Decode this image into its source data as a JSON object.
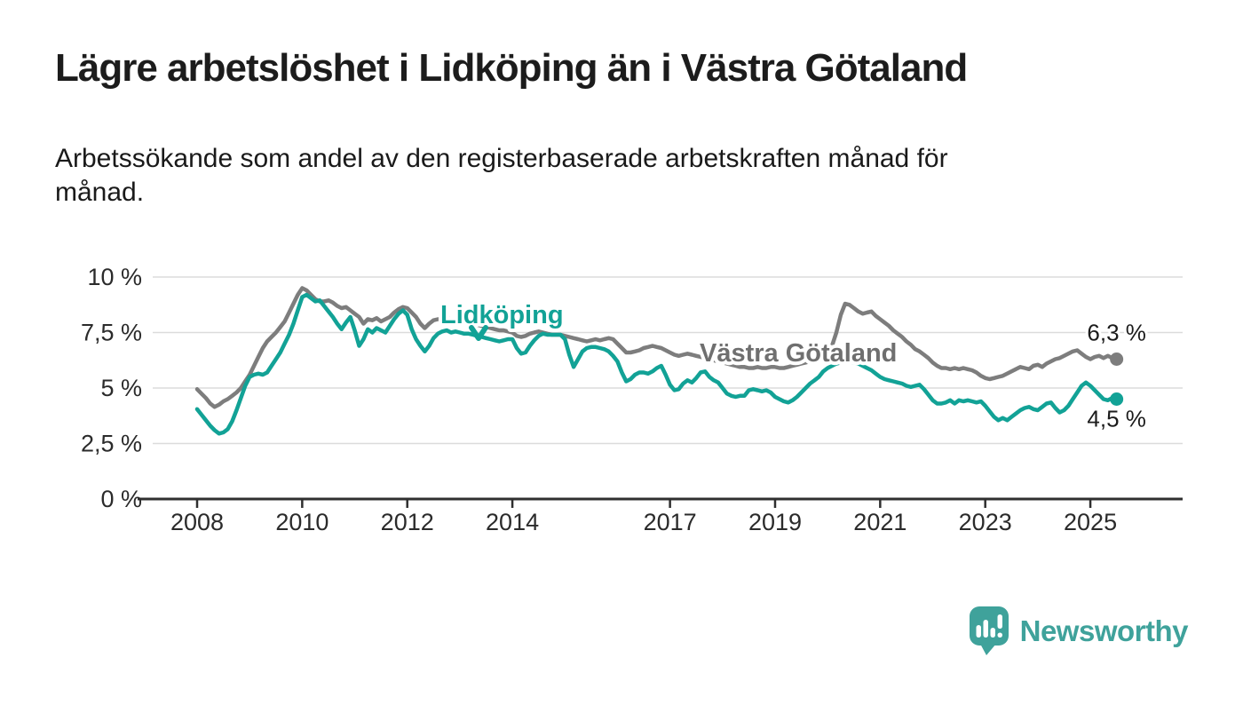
{
  "title": "Lägre arbetslöshet i Lidköping än i Västra Götaland",
  "subtitle": "Arbetssökande som andel av den registerbaserade arbetskraften månad för månad.",
  "branding": {
    "name": "Newsworthy",
    "color": "#3fa29b",
    "icon": "bar-chart-speech-bubble-icon"
  },
  "chart_data": {
    "type": "line",
    "title": "Lägre arbetslöshet i Lidköping än i Västra Götaland",
    "subtitle": "Arbetssökande som andel av den registerbaserade arbetskraften månad för månad.",
    "unit": "%",
    "frequency": "monthly",
    "x_start": "2008-01",
    "x_end": "2025-07",
    "ylim": [
      0,
      10
    ],
    "grid": true,
    "y_ticks": [
      "0 %",
      "2,5 %",
      "5 %",
      "7,5 %",
      "10 %"
    ],
    "x_ticks": [
      "2008",
      "2010",
      "2012",
      "2014",
      "2017",
      "2019",
      "2021",
      "2023",
      "2025"
    ],
    "x_tick_years": [
      2008,
      2010,
      2012,
      2014,
      2017,
      2019,
      2021,
      2023,
      2025
    ],
    "series": [
      {
        "name": "Västra Götaland",
        "color": "#7d7d7d",
        "label_color": "#6f6f6f",
        "end_label": "6,3 %",
        "end_value": 6.3,
        "values": [
          4.95,
          4.75,
          4.55,
          4.3,
          4.15,
          4.25,
          4.4,
          4.5,
          4.65,
          4.8,
          5.0,
          5.3,
          5.6,
          6.0,
          6.4,
          6.8,
          7.1,
          7.3,
          7.5,
          7.75,
          8.0,
          8.4,
          8.8,
          9.2,
          9.5,
          9.4,
          9.2,
          9.0,
          8.9,
          8.9,
          8.95,
          8.85,
          8.7,
          8.6,
          8.65,
          8.5,
          8.35,
          8.2,
          7.9,
          8.1,
          8.05,
          8.15,
          8.0,
          8.1,
          8.2,
          8.4,
          8.55,
          8.65,
          8.6,
          8.4,
          8.2,
          7.9,
          7.7,
          7.9,
          8.05,
          8.1,
          8.1,
          8.15,
          8.1,
          8.1,
          8.05,
          8.0,
          7.95,
          7.9,
          7.85,
          7.8,
          7.75,
          7.7,
          7.65,
          7.6,
          7.6,
          7.55,
          7.5,
          7.35,
          7.3,
          7.35,
          7.45,
          7.5,
          7.55,
          7.5,
          7.45,
          7.4,
          7.4,
          7.4,
          7.35,
          7.3,
          7.25,
          7.2,
          7.15,
          7.1,
          7.15,
          7.2,
          7.15,
          7.2,
          7.25,
          7.2,
          7.0,
          6.8,
          6.6,
          6.6,
          6.65,
          6.7,
          6.8,
          6.85,
          6.9,
          6.85,
          6.8,
          6.7,
          6.6,
          6.5,
          6.45,
          6.5,
          6.55,
          6.5,
          6.45,
          6.4,
          6.35,
          6.3,
          6.25,
          6.2,
          6.15,
          6.1,
          6.05,
          6.0,
          5.95,
          5.95,
          5.9,
          5.9,
          5.95,
          5.9,
          5.9,
          5.95,
          5.95,
          5.9,
          5.9,
          5.95,
          6.0,
          6.05,
          6.1,
          6.15,
          6.2,
          6.3,
          6.4,
          6.55,
          6.6,
          6.9,
          7.5,
          8.3,
          8.8,
          8.75,
          8.6,
          8.45,
          8.35,
          8.4,
          8.45,
          8.25,
          8.1,
          7.95,
          7.8,
          7.6,
          7.45,
          7.3,
          7.1,
          6.95,
          6.75,
          6.65,
          6.5,
          6.35,
          6.15,
          6.0,
          5.9,
          5.9,
          5.85,
          5.9,
          5.85,
          5.9,
          5.85,
          5.8,
          5.7,
          5.55,
          5.45,
          5.4,
          5.45,
          5.5,
          5.55,
          5.65,
          5.75,
          5.85,
          5.95,
          5.9,
          5.85,
          6.0,
          6.05,
          5.95,
          6.1,
          6.2,
          6.3,
          6.35,
          6.45,
          6.55,
          6.65,
          6.7,
          6.55,
          6.4,
          6.3,
          6.4,
          6.45,
          6.35,
          6.45,
          6.35,
          6.3
        ]
      },
      {
        "name": "Lidköping",
        "color": "#12a296",
        "label_color": "#12a296",
        "end_label": "4,5 %",
        "end_value": 4.5,
        "values": [
          4.05,
          3.8,
          3.55,
          3.3,
          3.1,
          2.95,
          3.0,
          3.15,
          3.5,
          4.0,
          4.55,
          5.1,
          5.5,
          5.6,
          5.65,
          5.6,
          5.7,
          6.0,
          6.3,
          6.6,
          7.0,
          7.4,
          7.9,
          8.5,
          9.1,
          9.2,
          9.05,
          8.9,
          8.95,
          8.7,
          8.45,
          8.2,
          7.9,
          7.65,
          7.95,
          8.2,
          7.6,
          6.9,
          7.2,
          7.65,
          7.5,
          7.7,
          7.6,
          7.5,
          7.8,
          8.1,
          8.35,
          8.5,
          8.3,
          7.65,
          7.2,
          6.9,
          6.65,
          6.9,
          7.25,
          7.45,
          7.55,
          7.6,
          7.5,
          7.55,
          7.5,
          7.45,
          7.45,
          7.4,
          7.35,
          7.3,
          7.25,
          7.2,
          7.15,
          7.1,
          7.15,
          7.2,
          7.2,
          6.8,
          6.55,
          6.6,
          6.9,
          7.15,
          7.35,
          7.45,
          7.4,
          7.4,
          7.4,
          7.4,
          7.2,
          6.5,
          5.95,
          6.3,
          6.65,
          6.8,
          6.85,
          6.85,
          6.8,
          6.75,
          6.65,
          6.45,
          6.2,
          5.7,
          5.3,
          5.4,
          5.6,
          5.7,
          5.7,
          5.65,
          5.75,
          5.9,
          6.0,
          5.6,
          5.15,
          4.9,
          4.95,
          5.2,
          5.35,
          5.25,
          5.45,
          5.7,
          5.75,
          5.5,
          5.35,
          5.25,
          5.0,
          4.75,
          4.65,
          4.6,
          4.65,
          4.65,
          4.9,
          4.95,
          4.9,
          4.85,
          4.9,
          4.8,
          4.6,
          4.5,
          4.4,
          4.35,
          4.45,
          4.6,
          4.8,
          5.0,
          5.2,
          5.35,
          5.5,
          5.75,
          5.9,
          6.0,
          6.1,
          6.15,
          6.2,
          6.2,
          6.15,
          6.1,
          6.0,
          5.9,
          5.8,
          5.65,
          5.5,
          5.4,
          5.35,
          5.3,
          5.25,
          5.2,
          5.1,
          5.05,
          5.1,
          5.15,
          4.95,
          4.7,
          4.45,
          4.3,
          4.3,
          4.35,
          4.45,
          4.3,
          4.45,
          4.4,
          4.45,
          4.4,
          4.35,
          4.4,
          4.2,
          3.95,
          3.7,
          3.55,
          3.65,
          3.55,
          3.7,
          3.85,
          4.0,
          4.1,
          4.15,
          4.05,
          4.0,
          4.15,
          4.3,
          4.35,
          4.1,
          3.9,
          4.0,
          4.2,
          4.5,
          4.8,
          5.1,
          5.25,
          5.1,
          4.9,
          4.7,
          4.5,
          4.45,
          4.55,
          4.5
        ]
      }
    ],
    "annotations": [
      {
        "text": "Västra Götaland"
      },
      {
        "text": "Lidköping"
      }
    ],
    "legend_position": "inline-labels"
  }
}
